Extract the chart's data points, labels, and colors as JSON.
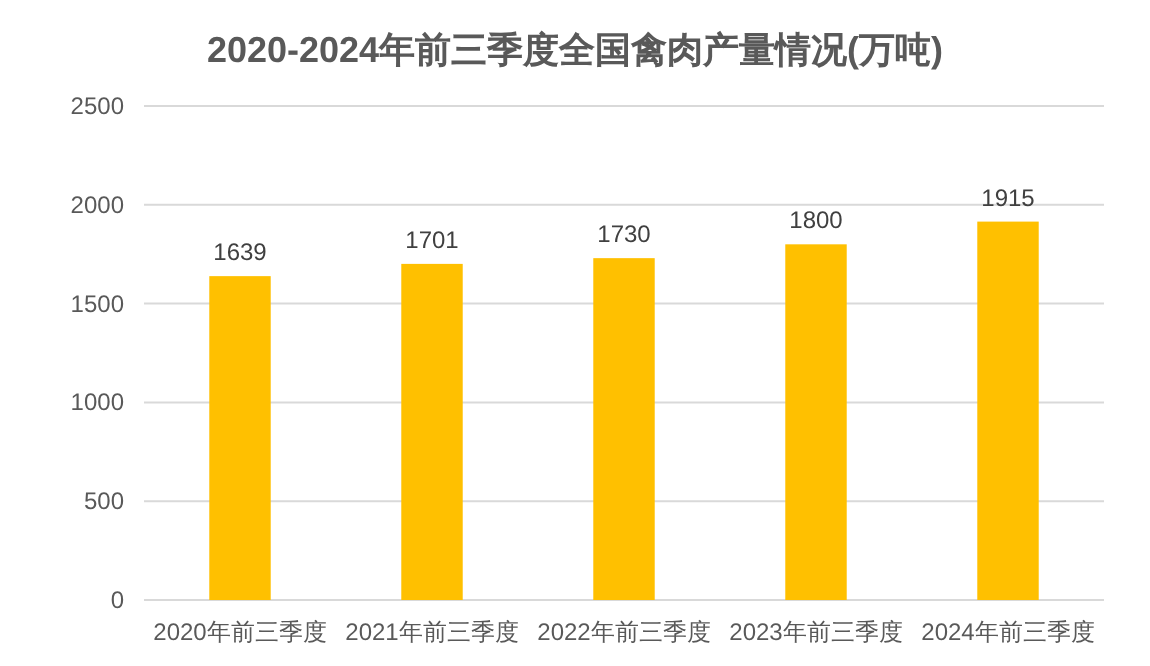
{
  "chart_data": {
    "type": "bar",
    "title": "2020-2024年前三季度全国禽肉产量情况(万吨)",
    "categories": [
      "2020年前三季度",
      "2021年前三季度",
      "2022年前三季度",
      "2023年前三季度",
      "2024年前三季度"
    ],
    "values": [
      1639,
      1701,
      1730,
      1800,
      1915
    ],
    "color": "#ffc000",
    "ylim": [
      0,
      2500
    ],
    "yticks": [
      0,
      500,
      1000,
      1500,
      2000,
      2500
    ],
    "grid": "y",
    "data_labels": true
  }
}
